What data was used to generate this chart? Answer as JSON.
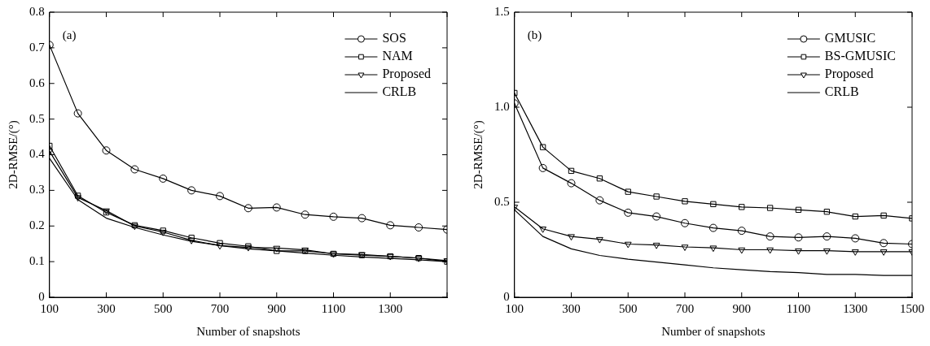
{
  "chart_data": [
    {
      "type": "line",
      "xlabel": "Number of snapshots",
      "ylabel": "2D-RMSE/(°)",
      "annotations": [
        "(a)"
      ],
      "x": [
        100,
        200,
        300,
        400,
        500,
        600,
        700,
        800,
        900,
        1000,
        1100,
        1200,
        1300,
        1400,
        1500
      ],
      "xlim": [
        100,
        1500
      ],
      "xticks": [
        100,
        300,
        500,
        700,
        900,
        1100,
        1300,
        {
          "value": 1500,
          "label": null
        }
      ],
      "ylim": [
        0,
        0.8
      ],
      "yticks": [
        0,
        0.1,
        0.2,
        0.3,
        0.4,
        0.5,
        0.6,
        0.7,
        0.8
      ],
      "grid": false,
      "legend": "top right",
      "series": [
        {
          "name": "SOS",
          "color": "#000000",
          "marker": "circle",
          "values": [
            0.708,
            0.516,
            0.412,
            0.359,
            0.333,
            0.3,
            0.284,
            0.25,
            0.252,
            0.232,
            0.226,
            0.222,
            0.202,
            0.196,
            0.19
          ]
        },
        {
          "name": "NAM",
          "color": "#000000",
          "marker": "square",
          "values": [
            0.425,
            0.285,
            0.238,
            0.202,
            0.187,
            0.167,
            0.152,
            0.143,
            0.13,
            0.13,
            0.122,
            0.118,
            0.115,
            0.11,
            0.1
          ]
        },
        {
          "name": "Proposed",
          "color": "#000000",
          "marker": "triangle",
          "values": [
            0.41,
            0.28,
            0.243,
            0.2,
            0.183,
            0.16,
            0.145,
            0.14,
            0.138,
            0.133,
            0.122,
            0.12,
            0.115,
            0.11,
            0.103
          ]
        },
        {
          "name": "CRLB",
          "color": "#000000",
          "marker": "none",
          "values": [
            0.39,
            0.274,
            0.222,
            0.196,
            0.175,
            0.157,
            0.145,
            0.136,
            0.13,
            0.124,
            0.118,
            0.113,
            0.109,
            0.105,
            0.1
          ]
        }
      ]
    },
    {
      "type": "line",
      "xlabel": "Number of snapshots",
      "ylabel": "2D-RMSE/(°)",
      "annotations": [
        "(b)"
      ],
      "x": [
        100,
        200,
        300,
        400,
        500,
        600,
        700,
        800,
        900,
        1000,
        1100,
        1200,
        1300,
        1400,
        1500
      ],
      "xlim": [
        100,
        1500
      ],
      "xticks": [
        100,
        300,
        500,
        700,
        900,
        1100,
        1300,
        1500
      ],
      "ylim": [
        0,
        1.5
      ],
      "yticks": [
        0,
        {
          "value": 0.5,
          "label": "0.5"
        },
        {
          "value": 1,
          "label": "1.0"
        },
        {
          "value": 1.5,
          "label": "1.5"
        }
      ],
      "grid": false,
      "legend": "top right",
      "series": [
        {
          "name": "GMUSIC",
          "color": "#000000",
          "marker": "circle",
          "values": [
            1.02,
            0.68,
            0.6,
            0.51,
            0.445,
            0.425,
            0.39,
            0.365,
            0.35,
            0.32,
            0.315,
            0.32,
            0.31,
            0.285,
            0.28
          ]
        },
        {
          "name": "BS-GMUSIC",
          "color": "#000000",
          "marker": "square",
          "values": [
            1.075,
            0.79,
            0.665,
            0.625,
            0.555,
            0.53,
            0.505,
            0.49,
            0.475,
            0.47,
            0.46,
            0.45,
            0.425,
            0.43,
            0.415
          ]
        },
        {
          "name": "Proposed",
          "color": "#000000",
          "marker": "triangle",
          "values": [
            0.475,
            0.36,
            0.32,
            0.305,
            0.28,
            0.275,
            0.265,
            0.26,
            0.25,
            0.25,
            0.245,
            0.245,
            0.24,
            0.24,
            0.24
          ]
        },
        {
          "name": "CRLB",
          "color": "#000000",
          "marker": "none",
          "values": [
            0.46,
            0.32,
            0.255,
            0.22,
            0.2,
            0.185,
            0.17,
            0.155,
            0.145,
            0.135,
            0.13,
            0.12,
            0.12,
            0.115,
            0.115
          ]
        }
      ]
    }
  ]
}
